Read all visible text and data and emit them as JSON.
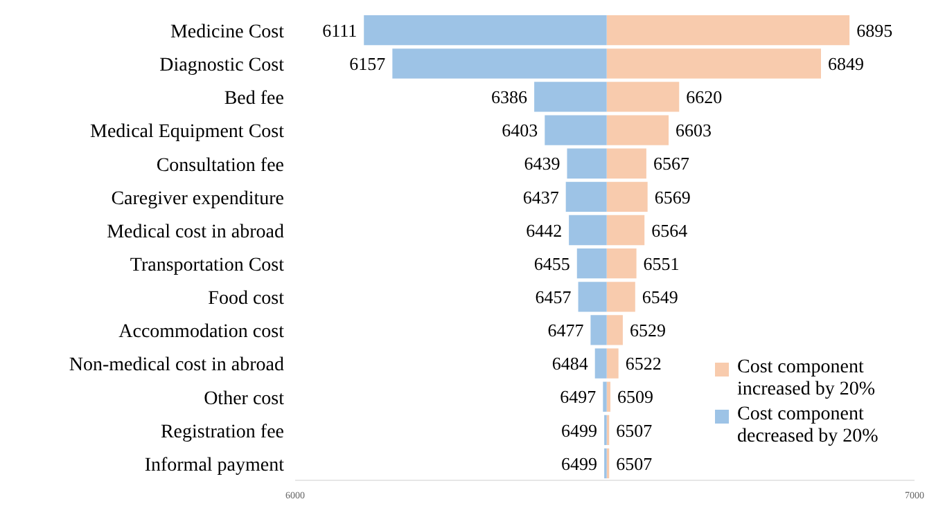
{
  "chart_data": {
    "type": "bar",
    "orientation": "horizontal",
    "categories": [
      "Medicine Cost",
      "Diagnostic Cost",
      "Bed fee",
      "Medical Equipment Cost",
      "Consultation fee",
      "Caregiver expenditure",
      "Medical cost in abroad",
      "Transportation Cost",
      "Food cost",
      "Accommodation cost",
      "Non-medical cost in abroad",
      "Other cost",
      "Registration fee",
      "Informal payment"
    ],
    "series": [
      {
        "name": "Cost component increased by 20%",
        "color": "#f8cbad",
        "base": [
          6503,
          6503,
          6503,
          6503,
          6503,
          6503,
          6503,
          6503,
          6503,
          6503,
          6503,
          6503,
          6503,
          6503
        ],
        "values": [
          392,
          346,
          117,
          100,
          64,
          66,
          61,
          48,
          46,
          26,
          19,
          6,
          4,
          4
        ],
        "value_labels": [
          "6895",
          "6849",
          "6620",
          "6603",
          "6567",
          "6569",
          "6564",
          "6551",
          "6549",
          "6529",
          "6522",
          "6509",
          "6507",
          "6507"
        ]
      },
      {
        "name": "Cost component decreased by 20%",
        "color": "#9dc3e6",
        "base": [
          6503,
          6503,
          6503,
          6503,
          6503,
          6503,
          6503,
          6503,
          6503,
          6503,
          6503,
          6503,
          6503,
          6503
        ],
        "values": [
          -392,
          -346,
          -117,
          -100,
          -64,
          -66,
          -61,
          -48,
          -46,
          -26,
          -19,
          -6,
          -4,
          -4
        ],
        "value_labels": [
          "6111",
          "6157",
          "6386",
          "6403",
          "6439",
          "6437",
          "6442",
          "6455",
          "6457",
          "6477",
          "6484",
          "6497",
          "6499",
          "6499"
        ]
      }
    ],
    "xlim": [
      6000,
      7000
    ],
    "xticks": [
      6000,
      7000
    ],
    "legend": "right",
    "grid": false
  }
}
